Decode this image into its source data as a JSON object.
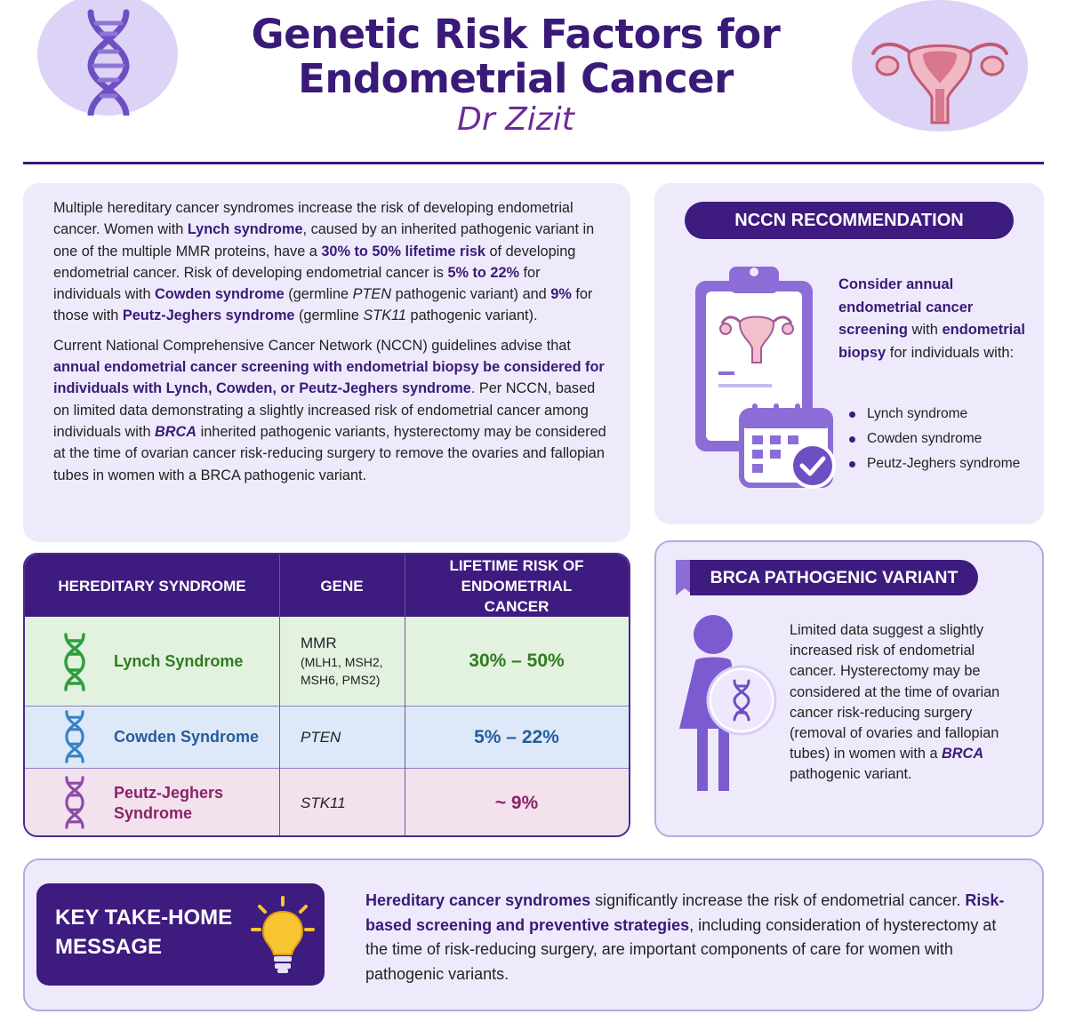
{
  "header": {
    "title_line1": "Genetic Risk Factors for",
    "title_line2": "Endometrial Cancer",
    "author": "Dr Zizit"
  },
  "intro": {
    "p1": {
      "t1": "Multiple hereditary cancer syndromes increase the risk of developing endometrial cancer. Women with ",
      "h1": "Lynch syndrome",
      "t2": ", caused by an inherited pathogenic variant in one of the multiple MMR proteins, have a ",
      "h2": "30% to 50% lifetime risk",
      "t3": " of developing endometrial cancer. Risk of developing endometrial cancer is ",
      "h3": "5% to 22%",
      "t4": " for individuals with ",
      "h4": "Cowden syndrome",
      "t5": " (germline ",
      "i1": "PTEN",
      "t6": " pathogenic variant) and ",
      "h5": "9%",
      "t7": " for those with ",
      "h6": "Peutz-Jeghers syndrome",
      "t8": " (germline ",
      "i2": "STK11",
      "t9": " pathogenic variant)."
    },
    "p2": {
      "t1": "Current National Comprehensive Cancer Network (NCCN) guidelines advise that ",
      "h1": "annual endometrial cancer screening with endometrial biopsy be considered for individuals with Lynch, Cowden, or Peutz-Jeghers syndrome",
      "t2": ". Per NCCN, based on limited data demonstrating a slightly increased risk of endometrial cancer among individuals with ",
      "h2": "BRCA",
      "t3": " inherited pathogenic variants, hysterectomy may be considered at the time of ovarian cancer risk-reducing surgery to remove the ovaries and fallopian tubes in women with a BRCA pathogenic variant."
    }
  },
  "nccn": {
    "heading": "NCCN RECOMMENDATION",
    "h1": "Consider annual endometrial cancer screening",
    "t1": " with ",
    "h2": "endometrial biopsy",
    "t2": " for individuals with:",
    "items": [
      "Lynch syndrome",
      "Cowden syndrome",
      "Peutz-Jeghers syndrome"
    ]
  },
  "table": {
    "headers": [
      "HEREDITARY SYNDROME",
      "GENE",
      "LIFETIME RISK OF ENDOMETRIAL CANCER"
    ],
    "rows": [
      {
        "syndrome": "Lynch Syndrome",
        "gene": "MMR",
        "gene_detail": "(MLH1, MSH2, MSH6, PMS2)",
        "risk": "30% – 50%",
        "color": "#2e7d1e",
        "bg": "#e3f1df",
        "icon": "dna-icon"
      },
      {
        "syndrome": "Cowden Syndrome",
        "gene": "PTEN",
        "gene_detail": "",
        "risk": "5% – 22%",
        "color": "#255d9c",
        "bg": "#dde9f8",
        "icon": "dna-icon"
      },
      {
        "syndrome": "Peutz-Jeghers Syndrome",
        "gene": "STK11",
        "gene_detail": "",
        "risk": "~ 9%",
        "color": "#8a2466",
        "bg": "#f3e1ee",
        "icon": "dna-icon"
      }
    ]
  },
  "brca": {
    "heading": "BRCA PATHOGENIC VARIANT",
    "t1": "Limited data suggest a slightly increased risk of endometrial cancer. Hysterectomy may be considered at the time of ovarian cancer risk-reducing surgery (removal of ovaries and fallopian tubes) in women with a ",
    "h1": "BRCA",
    "t2": " pathogenic variant."
  },
  "takehome": {
    "label": "KEY TAKE-HOME MESSAGE",
    "h1": "Hereditary cancer syndromes",
    "t1": " significantly increase the risk of endometrial cancer. ",
    "h2": "Risk-based screening and preventive strategies",
    "t2": ", including consideration of hysterectomy at the time of risk-reducing surgery, are important components of care for women with pathogenic variants."
  },
  "colors": {
    "primary": "#3e1b7f",
    "title": "#3a1a78",
    "author": "#6c2b98",
    "card_bg": "#efeafb",
    "accent_purple": "#8c6cd6",
    "bulb_yellow": "#f7c531"
  }
}
